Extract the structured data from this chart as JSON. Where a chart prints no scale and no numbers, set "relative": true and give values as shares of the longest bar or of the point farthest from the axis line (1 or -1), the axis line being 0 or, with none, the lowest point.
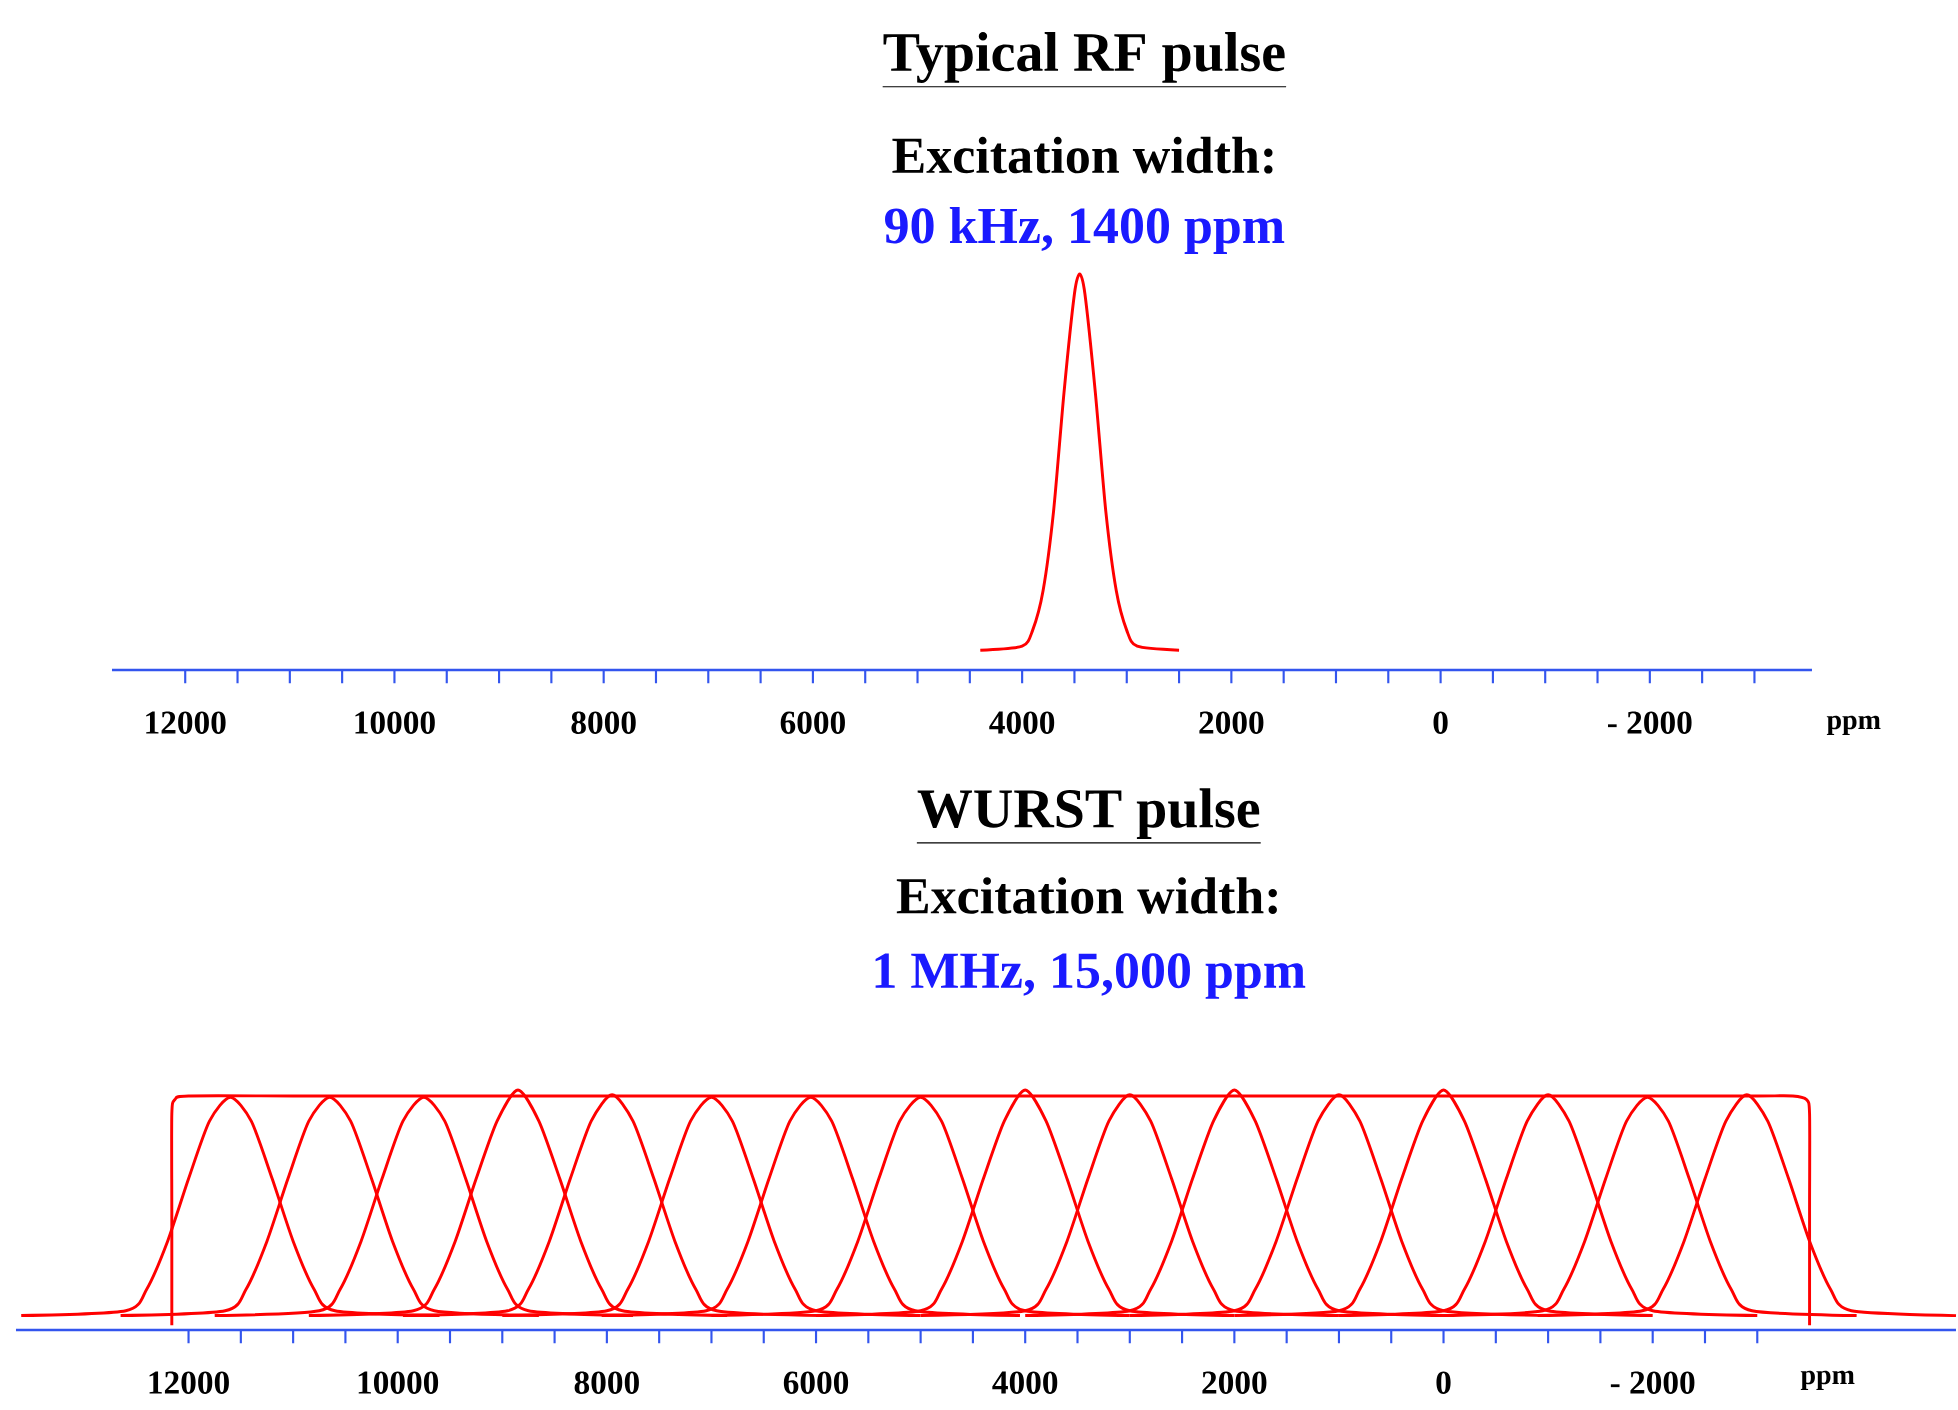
{
  "chart_data": [
    {
      "type": "line",
      "title": "Typical RF pulse",
      "subtitle": "Excitation width:",
      "annotations": [
        "90 kHz, 1400 ppm"
      ],
      "xlabel": "ppm",
      "relative": true,
      "xlim": [
        12700,
        -3550
      ],
      "xticks": [
        12000,
        {
          "value": 11500,
          "label": null
        },
        {
          "value": 11000,
          "label": null
        },
        {
          "value": 10500,
          "label": null
        },
        10000,
        {
          "value": 9500,
          "label": null
        },
        {
          "value": 9000,
          "label": null
        },
        {
          "value": 8500,
          "label": null
        },
        8000,
        {
          "value": 7500,
          "label": null
        },
        {
          "value": 7000,
          "label": null
        },
        {
          "value": 6500,
          "label": null
        },
        6000,
        {
          "value": 5500,
          "label": null
        },
        {
          "value": 5000,
          "label": null
        },
        {
          "value": 4500,
          "label": null
        },
        4000,
        {
          "value": 3500,
          "label": null
        },
        {
          "value": 3000,
          "label": null
        },
        {
          "value": 2500,
          "label": null
        },
        2000,
        {
          "value": 1500,
          "label": null
        },
        {
          "value": 1000,
          "label": null
        },
        {
          "value": 500,
          "label": null
        },
        0,
        {
          "value": -500,
          "label": null
        },
        {
          "value": -1000,
          "label": null
        },
        {
          "value": -1500,
          "label": null
        },
        {
          "value": -2000,
          "label": "- 2000"
        },
        {
          "value": -2500,
          "label": null
        },
        {
          "value": -3000,
          "label": null
        }
      ],
      "color": "#ff0000",
      "x": [
        4400,
        4000,
        3900,
        3800,
        3700,
        3600,
        3500,
        3450,
        3400,
        3300,
        3200,
        3100,
        3000,
        2900,
        2500
      ],
      "values": [
        0.05,
        0.06,
        0.1,
        0.2,
        0.4,
        0.7,
        0.95,
        1,
        0.95,
        0.7,
        0.4,
        0.2,
        0.1,
        0.06,
        0.05
      ]
    },
    {
      "type": "line",
      "title": "WURST pulse",
      "subtitle": "Excitation width:",
      "annotations": [
        "1 MHz, 15,000 ppm"
      ],
      "xlabel": "ppm",
      "relative": true,
      "xlim": [
        13650,
        -4900
      ],
      "xticks": [
        12000,
        {
          "value": 11500,
          "label": null
        },
        {
          "value": 11000,
          "label": null
        },
        {
          "value": 10500,
          "label": null
        },
        10000,
        {
          "value": 9500,
          "label": null
        },
        {
          "value": 9000,
          "label": null
        },
        {
          "value": 8500,
          "label": null
        },
        8000,
        {
          "value": 7500,
          "label": null
        },
        {
          "value": 7000,
          "label": null
        },
        {
          "value": 6500,
          "label": null
        },
        6000,
        {
          "value": 5500,
          "label": null
        },
        {
          "value": 5000,
          "label": null
        },
        {
          "value": 4500,
          "label": null
        },
        4000,
        {
          "value": 3500,
          "label": null
        },
        {
          "value": 3000,
          "label": null
        },
        {
          "value": 2500,
          "label": null
        },
        2000,
        {
          "value": 1500,
          "label": null
        },
        {
          "value": 1000,
          "label": null
        },
        {
          "value": 500,
          "label": null
        },
        0,
        {
          "value": -500,
          "label": null
        },
        {
          "value": -1000,
          "label": null
        },
        {
          "value": -1500,
          "label": null
        },
        {
          "value": -2000,
          "label": "- 2000"
        },
        {
          "value": -2500,
          "label": null
        },
        {
          "value": -3000,
          "label": null
        }
      ],
      "series": [
        {
          "color": "#ff0000",
          "x": [
            12160,
            12160,
            12160,
            12130,
            12000,
            11000,
            10000,
            9000,
            8000,
            7000,
            6000,
            5000,
            4000,
            3000,
            2000,
            1000,
            0,
            -1000,
            -2000,
            -3000,
            -3340,
            -3470,
            -3500,
            -3500,
            -3500
          ],
          "values": [
            0.02,
            0.5,
            0.9,
            0.96,
            0.975,
            0.975,
            0.975,
            0.975,
            0.975,
            0.975,
            0.975,
            0.975,
            0.975,
            0.975,
            0.975,
            0.975,
            0.975,
            0.975,
            0.975,
            0.975,
            0.975,
            0.96,
            0.9,
            0.5,
            0.02
          ]
        },
        {
          "color": "#ff0000",
          "x": [
            13600,
            12600,
            12400,
            12200,
            12000,
            11800,
            11600,
            11400,
            11200,
            11000,
            10800,
            10600,
            9600
          ],
          "values": [
            0.06,
            0.08,
            0.17,
            0.37,
            0.63,
            0.87,
            0.97,
            0.87,
            0.63,
            0.37,
            0.17,
            0.08,
            0.06
          ]
        },
        {
          "color": "#ff0000",
          "x": [
            12650,
            11650,
            11450,
            11250,
            11050,
            10850,
            10650,
            10450,
            10250,
            10050,
            9850,
            9650,
            8650
          ],
          "values": [
            0.06,
            0.08,
            0.17,
            0.37,
            0.63,
            0.87,
            0.97,
            0.87,
            0.63,
            0.37,
            0.17,
            0.08,
            0.06
          ]
        },
        {
          "color": "#ff0000",
          "x": [
            11750,
            10750,
            10550,
            10350,
            10150,
            9950,
            9750,
            9550,
            9350,
            9150,
            8950,
            8750,
            7750
          ],
          "values": [
            0.06,
            0.08,
            0.17,
            0.37,
            0.63,
            0.87,
            0.97,
            0.87,
            0.63,
            0.37,
            0.17,
            0.08,
            0.06
          ]
        },
        {
          "color": "#ff0000",
          "x": [
            10850,
            9850,
            9650,
            9450,
            9250,
            9050,
            8850,
            8650,
            8450,
            8250,
            8050,
            7850,
            6850
          ],
          "values": [
            0.06,
            0.08,
            0.17,
            0.37,
            0.63,
            0.87,
            1,
            0.87,
            0.63,
            0.37,
            0.17,
            0.08,
            0.06
          ]
        },
        {
          "color": "#ff0000",
          "x": [
            9950,
            8950,
            8750,
            8550,
            8350,
            8150,
            7950,
            7750,
            7550,
            7350,
            7150,
            6950,
            5950
          ],
          "values": [
            0.06,
            0.08,
            0.17,
            0.37,
            0.63,
            0.87,
            0.98,
            0.87,
            0.63,
            0.37,
            0.17,
            0.08,
            0.06
          ]
        },
        {
          "color": "#ff0000",
          "x": [
            9000,
            8000,
            7800,
            7600,
            7400,
            7200,
            7000,
            6800,
            6600,
            6400,
            6200,
            6000,
            5000
          ],
          "values": [
            0.06,
            0.08,
            0.17,
            0.37,
            0.63,
            0.87,
            0.97,
            0.87,
            0.63,
            0.37,
            0.17,
            0.08,
            0.06
          ]
        },
        {
          "color": "#ff0000",
          "x": [
            8050,
            7050,
            6850,
            6650,
            6450,
            6250,
            6050,
            5850,
            5650,
            5450,
            5250,
            5050,
            4050
          ],
          "values": [
            0.06,
            0.08,
            0.17,
            0.37,
            0.63,
            0.87,
            0.97,
            0.87,
            0.63,
            0.37,
            0.17,
            0.08,
            0.06
          ]
        },
        {
          "color": "#ff0000",
          "x": [
            7000,
            6000,
            5800,
            5600,
            5400,
            5200,
            5000,
            4800,
            4600,
            4400,
            4200,
            4000,
            3000
          ],
          "values": [
            0.06,
            0.08,
            0.17,
            0.37,
            0.63,
            0.87,
            0.97,
            0.87,
            0.63,
            0.37,
            0.17,
            0.08,
            0.06
          ]
        },
        {
          "color": "#ff0000",
          "x": [
            6000,
            5000,
            4800,
            4600,
            4400,
            4200,
            4000,
            3800,
            3600,
            3400,
            3200,
            3000,
            2000
          ],
          "values": [
            0.06,
            0.08,
            0.17,
            0.37,
            0.63,
            0.87,
            1,
            0.87,
            0.63,
            0.37,
            0.17,
            0.08,
            0.06
          ]
        },
        {
          "color": "#ff0000",
          "x": [
            5000,
            4000,
            3800,
            3600,
            3400,
            3200,
            3000,
            2800,
            2600,
            2400,
            2200,
            2000,
            1000
          ],
          "values": [
            0.06,
            0.08,
            0.17,
            0.37,
            0.63,
            0.87,
            0.98,
            0.87,
            0.63,
            0.37,
            0.17,
            0.08,
            0.06
          ]
        },
        {
          "color": "#ff0000",
          "x": [
            4000,
            3000,
            2800,
            2600,
            2400,
            2200,
            2000,
            1800,
            1600,
            1400,
            1200,
            1000,
            0
          ],
          "values": [
            0.06,
            0.08,
            0.17,
            0.37,
            0.63,
            0.87,
            1,
            0.87,
            0.63,
            0.37,
            0.17,
            0.08,
            0.06
          ]
        },
        {
          "color": "#ff0000",
          "x": [
            3000,
            2000,
            1800,
            1600,
            1400,
            1200,
            1000,
            800,
            600,
            400,
            200,
            0,
            -1000
          ],
          "values": [
            0.06,
            0.08,
            0.17,
            0.37,
            0.63,
            0.87,
            0.98,
            0.87,
            0.63,
            0.37,
            0.17,
            0.08,
            0.06
          ]
        },
        {
          "color": "#ff0000",
          "x": [
            2000,
            1000,
            800,
            600,
            400,
            200,
            0,
            -200,
            -400,
            -600,
            -800,
            -1000,
            -2000
          ],
          "values": [
            0.06,
            0.08,
            0.17,
            0.37,
            0.63,
            0.87,
            1,
            0.87,
            0.63,
            0.37,
            0.17,
            0.08,
            0.06
          ]
        },
        {
          "color": "#ff0000",
          "x": [
            1000,
            0,
            -200,
            -400,
            -600,
            -800,
            -1000,
            -1200,
            -1400,
            -1600,
            -1800,
            -2000,
            -3000
          ],
          "values": [
            0.06,
            0.08,
            0.17,
            0.37,
            0.63,
            0.87,
            0.98,
            0.87,
            0.63,
            0.37,
            0.17,
            0.08,
            0.06
          ]
        },
        {
          "color": "#ff0000",
          "x": [
            50,
            -950,
            -1150,
            -1350,
            -1550,
            -1750,
            -1950,
            -2150,
            -2350,
            -2550,
            -2750,
            -2950,
            -3950
          ],
          "values": [
            0.06,
            0.08,
            0.17,
            0.37,
            0.63,
            0.87,
            0.97,
            0.87,
            0.63,
            0.37,
            0.17,
            0.08,
            0.06
          ]
        },
        {
          "color": "#ff0000",
          "x": [
            -900,
            -1900,
            -2100,
            -2300,
            -2500,
            -2700,
            -2900,
            -3100,
            -3300,
            -3500,
            -3700,
            -3900,
            -4900
          ],
          "values": [
            0.06,
            0.08,
            0.17,
            0.37,
            0.63,
            0.87,
            0.98,
            0.87,
            0.63,
            0.37,
            0.17,
            0.08,
            0.06
          ]
        }
      ]
    }
  ]
}
